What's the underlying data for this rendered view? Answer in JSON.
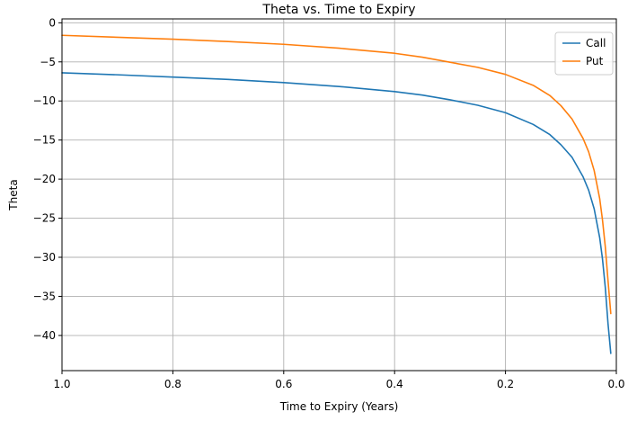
{
  "chart_data": {
    "type": "line",
    "title": "Theta vs. Time to Expiry",
    "xlabel": "Time to Expiry (Years)",
    "ylabel": "Theta",
    "xlim": [
      1.0,
      0.0
    ],
    "ylim": [
      -44.5,
      0.5
    ],
    "x_inverted": true,
    "grid": true,
    "legend": "top-right",
    "x_ticks": [
      1.0,
      0.8,
      0.6,
      0.4,
      0.2,
      0.0
    ],
    "x_tick_labels": [
      "1.0",
      "0.8",
      "0.6",
      "0.4",
      "0.2",
      "0.0"
    ],
    "y_ticks": [
      0,
      -5,
      -10,
      -15,
      -20,
      -25,
      -30,
      -35,
      -40
    ],
    "y_tick_labels": [
      "0",
      "−5",
      "−10",
      "−15",
      "−20",
      "−25",
      "−30",
      "−35",
      "−40"
    ],
    "x": [
      1.0,
      0.9,
      0.8,
      0.7,
      0.6,
      0.5,
      0.4,
      0.35,
      0.3,
      0.25,
      0.2,
      0.15,
      0.12,
      0.1,
      0.08,
      0.06,
      0.05,
      0.04,
      0.03,
      0.025,
      0.02,
      0.015,
      0.01
    ],
    "series": [
      {
        "name": "Call",
        "color": "#1f77b4",
        "values": [
          -6.4,
          -6.65,
          -6.95,
          -7.25,
          -7.65,
          -8.15,
          -8.8,
          -9.25,
          -9.85,
          -10.55,
          -11.5,
          -13.0,
          -14.3,
          -15.6,
          -17.2,
          -19.7,
          -21.4,
          -23.8,
          -27.5,
          -30.2,
          -33.8,
          -38.5,
          -42.3
        ]
      },
      {
        "name": "Put",
        "color": "#ff7f0e",
        "values": [
          -1.6,
          -1.85,
          -2.1,
          -2.4,
          -2.75,
          -3.25,
          -3.9,
          -4.4,
          -5.05,
          -5.7,
          -6.6,
          -8.0,
          -9.3,
          -10.6,
          -12.3,
          -14.8,
          -16.5,
          -18.9,
          -22.5,
          -25.2,
          -28.6,
          -33.0,
          -37.2
        ]
      }
    ]
  }
}
